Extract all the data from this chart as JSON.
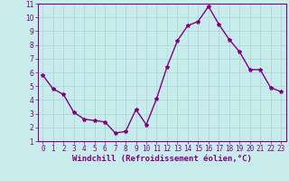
{
  "x": [
    0,
    1,
    2,
    3,
    4,
    5,
    6,
    7,
    8,
    9,
    10,
    11,
    12,
    13,
    14,
    15,
    16,
    17,
    18,
    19,
    20,
    21,
    22,
    23
  ],
  "y": [
    5.8,
    4.8,
    4.4,
    3.1,
    2.6,
    2.5,
    2.4,
    1.6,
    1.7,
    3.3,
    2.2,
    4.1,
    6.4,
    8.3,
    9.4,
    9.7,
    10.8,
    9.5,
    8.4,
    7.5,
    6.2,
    6.2,
    4.9,
    4.6
  ],
  "line_color": "#800080",
  "marker": "*",
  "marker_size": 3,
  "bg_color": "#c8ecec",
  "grid_color": "#a8d4d4",
  "axis_label_color": "#800080",
  "tick_color": "#800080",
  "xlabel": "Windchill (Refroidissement éolien,°C)",
  "xlim": [
    -0.5,
    23.5
  ],
  "ylim": [
    1,
    11
  ],
  "yticks": [
    1,
    2,
    3,
    4,
    5,
    6,
    7,
    8,
    9,
    10,
    11
  ],
  "xticks": [
    0,
    1,
    2,
    3,
    4,
    5,
    6,
    7,
    8,
    9,
    10,
    11,
    12,
    13,
    14,
    15,
    16,
    17,
    18,
    19,
    20,
    21,
    22,
    23
  ],
  "spine_color": "#800080",
  "linewidth": 1.0,
  "tick_fontsize": 5.5,
  "xlabel_fontsize": 6.5
}
